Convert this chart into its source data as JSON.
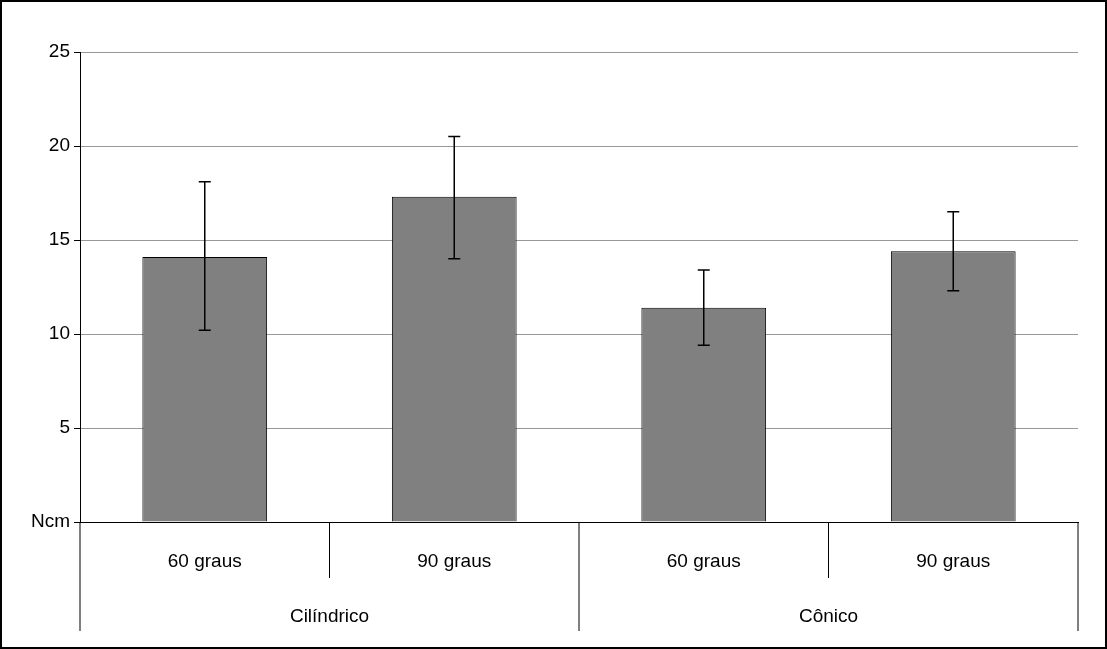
{
  "chart_data": {
    "type": "bar",
    "categories": [
      "60 graus",
      "90 graus",
      "60 graus",
      "90 graus"
    ],
    "values": [
      14.1,
      17.3,
      11.4,
      14.4
    ],
    "color": "#808080",
    "errors": [
      [
        10.2,
        18.1
      ],
      [
        14.0,
        20.5
      ],
      [
        9.4,
        13.4
      ],
      [
        12.3,
        16.5
      ]
    ],
    "ylim": [
      0,
      25
    ],
    "yticks": [
      {
        "value": 0,
        "label": "Ncm"
      },
      5,
      10,
      15,
      20,
      25
    ],
    "grid": "y",
    "annotations": [
      "Cilíndrico",
      "Cônico"
    ]
  }
}
